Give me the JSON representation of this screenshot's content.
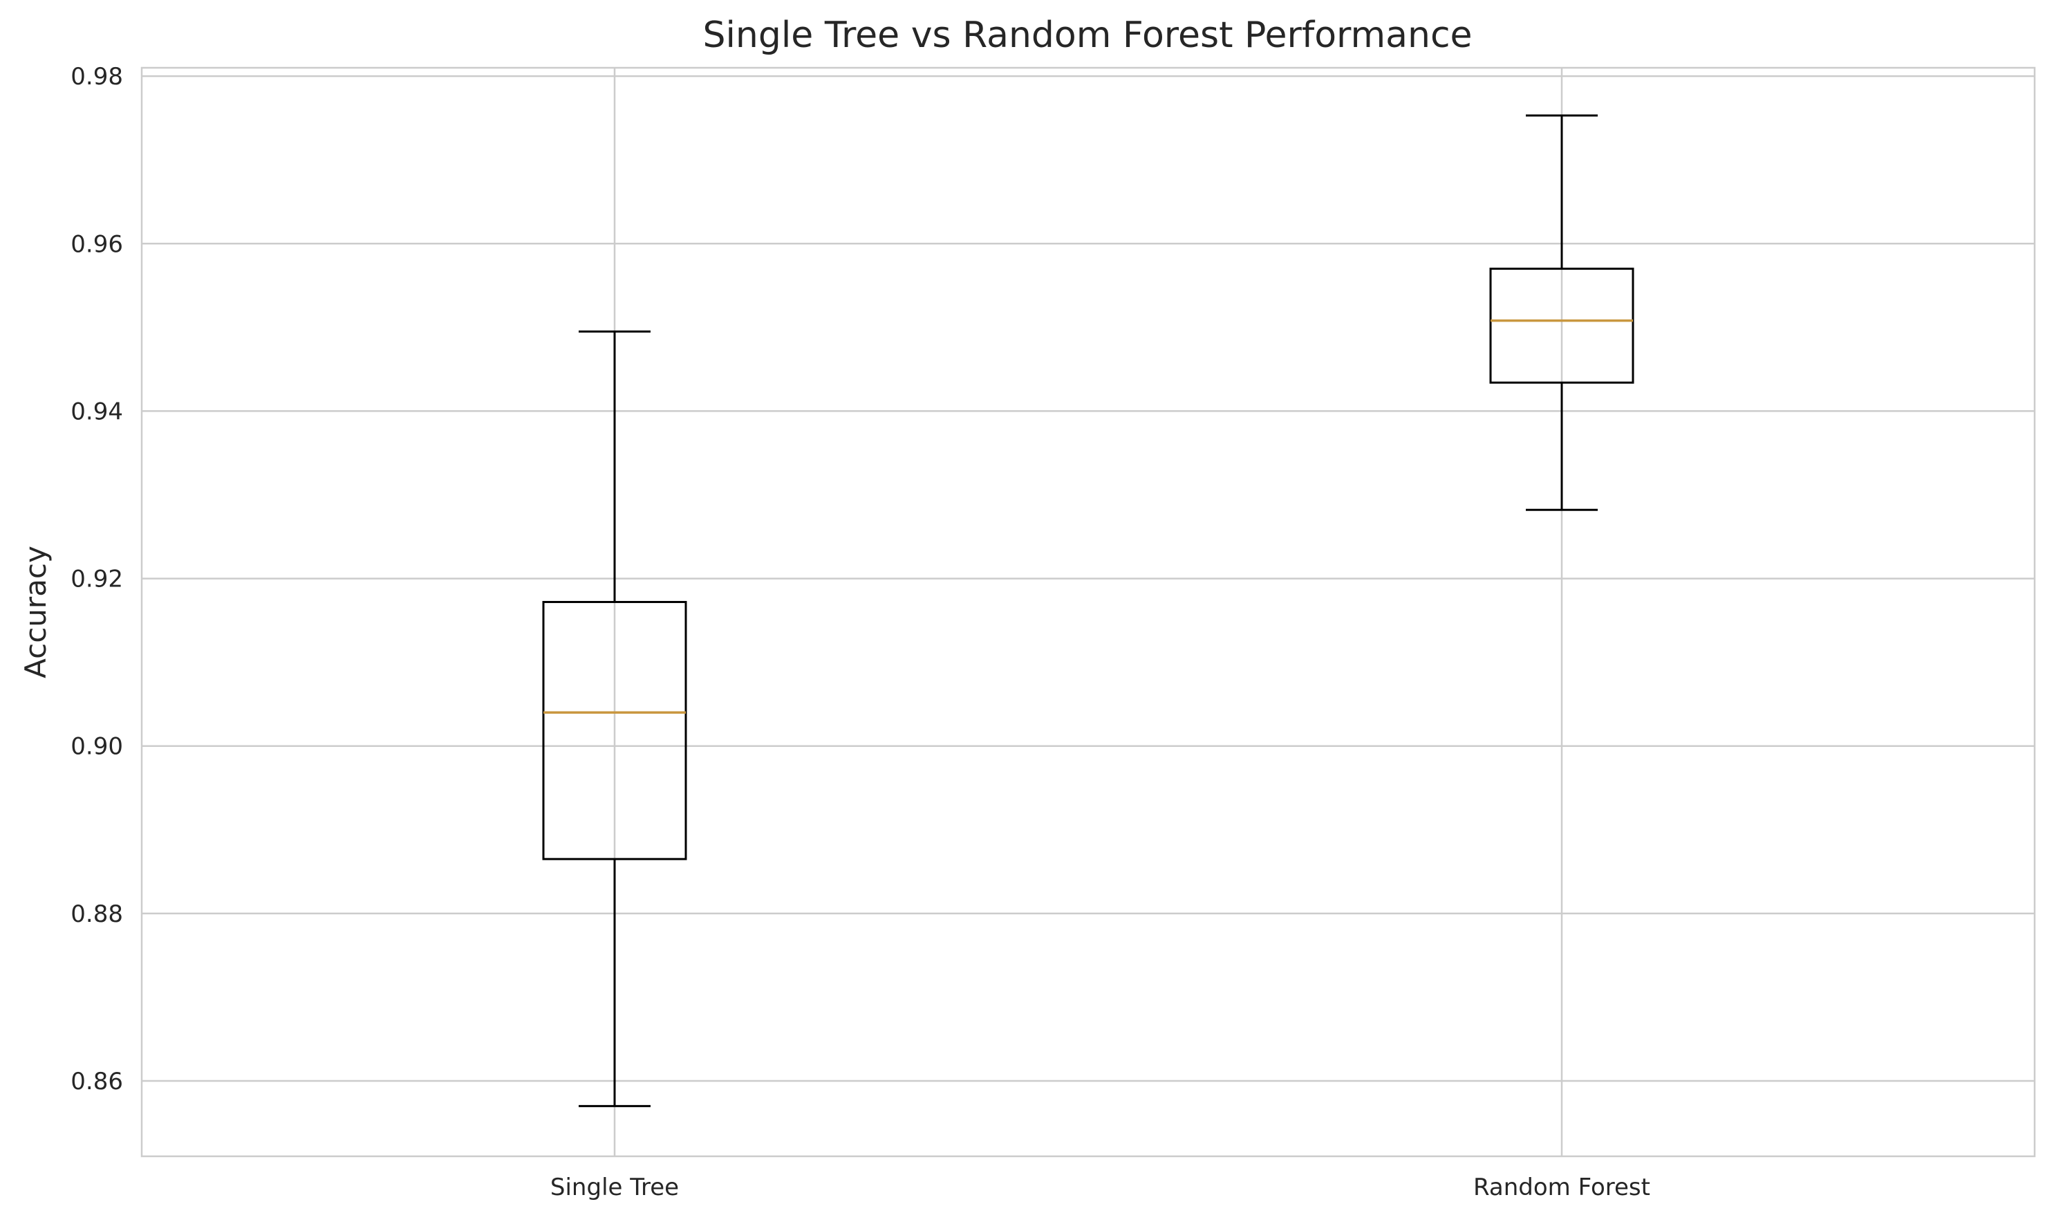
{
  "chart_data": {
    "type": "box",
    "title": "Single Tree vs Random Forest Performance",
    "xlabel": "",
    "ylabel": "Accuracy",
    "ylim": [
      0.851,
      0.981
    ],
    "yticks": [
      0.86,
      0.88,
      0.9,
      0.92,
      0.94,
      0.96,
      0.98
    ],
    "ytick_labels": [
      "0.86",
      "0.88",
      "0.90",
      "0.92",
      "0.94",
      "0.96",
      "0.98"
    ],
    "categories": [
      "Single Tree",
      "Random Forest"
    ],
    "boxes": [
      {
        "category": "Single Tree",
        "whisker_low": 0.857,
        "q1": 0.8865,
        "median": 0.904,
        "q3": 0.9172,
        "whisker_high": 0.9495
      },
      {
        "category": "Random Forest",
        "whisker_low": 0.9282,
        "q1": 0.9434,
        "median": 0.9508,
        "q3": 0.957,
        "whisker_high": 0.9753
      }
    ],
    "grid": true,
    "colors": {
      "box": "#000000",
      "median": "#c9973f",
      "grid": "#cccccc",
      "spine": "#cccccc",
      "text": "#262626"
    }
  }
}
